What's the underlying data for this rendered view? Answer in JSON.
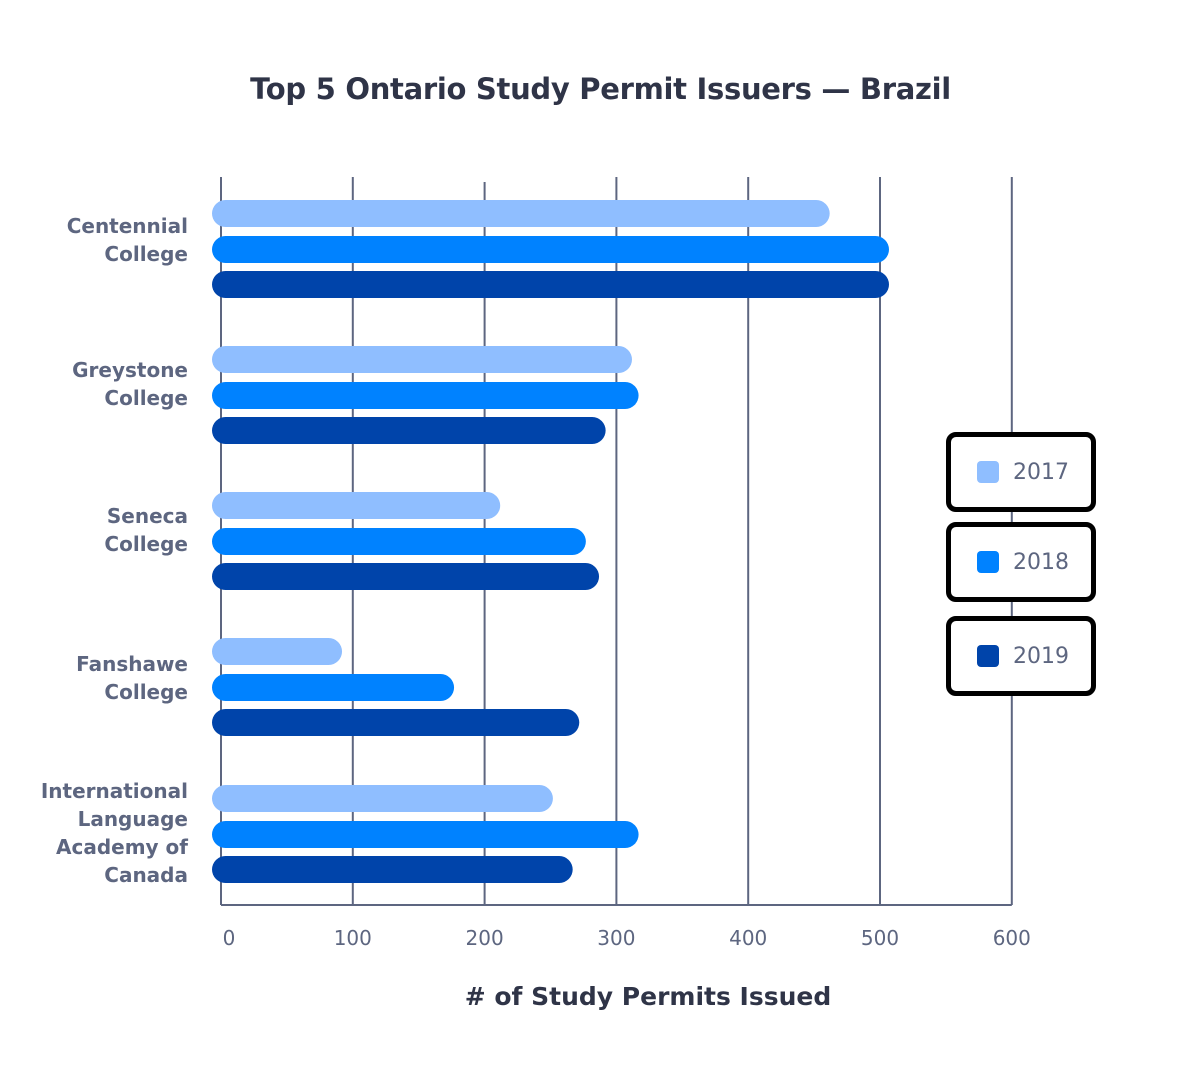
{
  "chart_data": {
    "type": "bar",
    "orientation": "horizontal",
    "title": "Top 5 Ontario Study Permit Issuers — Brazil",
    "xlabel": "# of Study Permits Issued",
    "ylabel": "",
    "xlim": [
      0,
      600
    ],
    "x_ticks": [
      "0",
      "100",
      "200",
      "300",
      "400",
      "500",
      "600"
    ],
    "grid": "vertical",
    "legend_position": "right",
    "categories": [
      "Centennial College",
      "Greystone College",
      "Seneca College",
      "Fanshawe College",
      "International Language Academy of Canada"
    ],
    "series": [
      {
        "name": "2017",
        "color": "#8FBEFF",
        "values": [
          455,
          305,
          205,
          85,
          245
        ]
      },
      {
        "name": "2018",
        "color": "#0082FF",
        "values": [
          500,
          310,
          270,
          170,
          310
        ]
      },
      {
        "name": "2019",
        "color": "#0044AA",
        "values": [
          500,
          285,
          280,
          265,
          260
        ]
      }
    ]
  },
  "labels": {
    "title": "Top 5 Ontario Study Permit Issuers — Brazil",
    "xlabel": "# of Study Permits Issued",
    "categories": [
      [
        "Centennial",
        "College"
      ],
      [
        "Greystone",
        "College"
      ],
      [
        "Seneca",
        "College"
      ],
      [
        "Fanshawe",
        "College"
      ],
      [
        "International",
        "Language",
        "Academy of",
        "Canada"
      ]
    ],
    "ticks": [
      "0",
      "100",
      "200",
      "300",
      "400",
      "500",
      "600"
    ],
    "legend": [
      "2017",
      "2018",
      "2019"
    ]
  },
  "colors": {
    "grid": "#5d6680",
    "text_dark": "#2f3447",
    "text_muted": "#5d6680",
    "series": [
      "#8FBEFF",
      "#0082FF",
      "#0044AA"
    ]
  }
}
